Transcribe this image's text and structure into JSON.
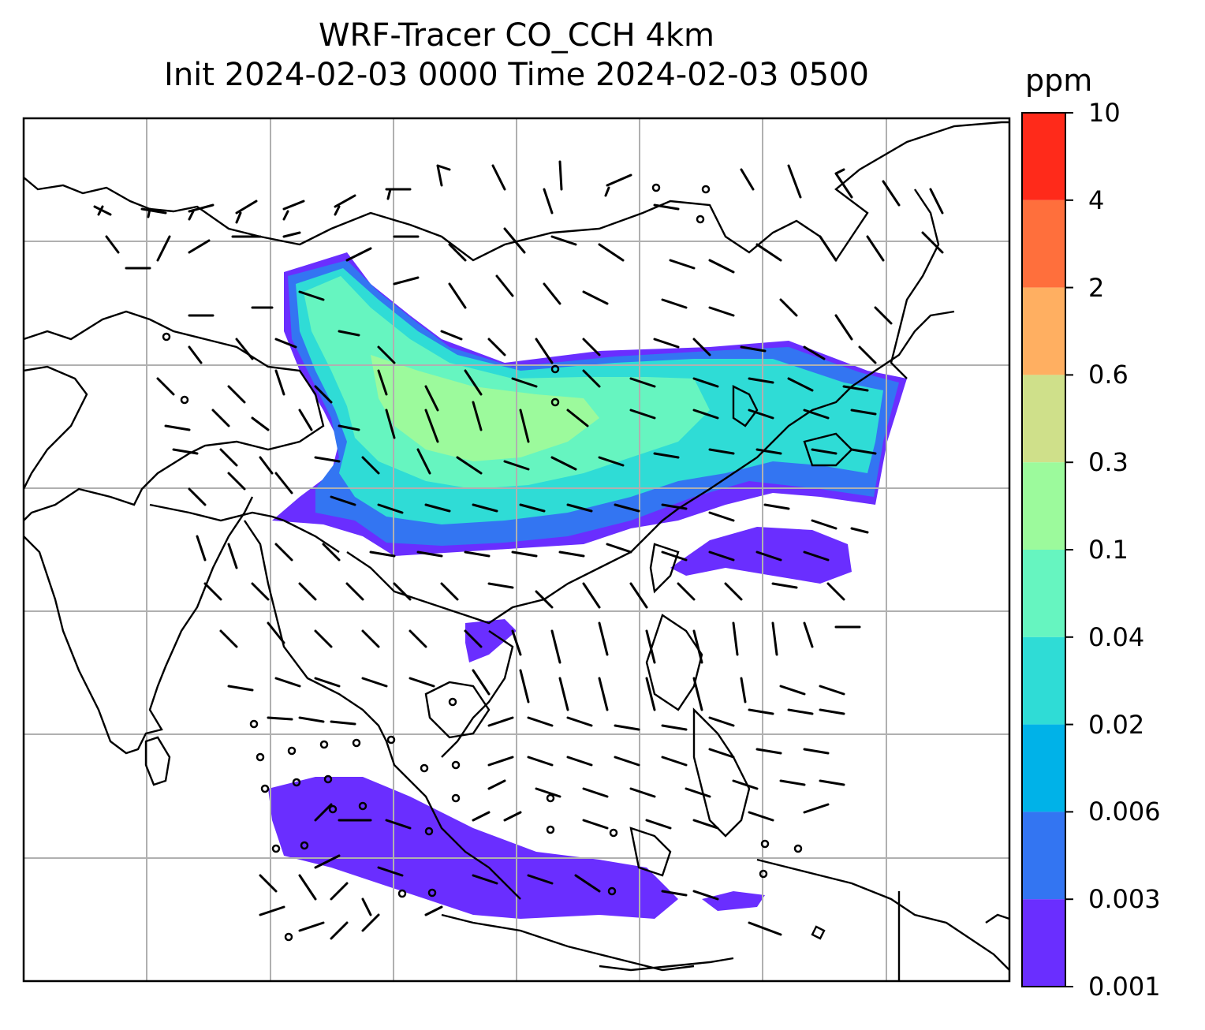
{
  "title": {
    "line1": "WRF-Tracer CO_CCH 4km",
    "line2": "Init 2024-02-03 0000 Time 2024-02-03 0500"
  },
  "colorbar": {
    "unit": "ppm",
    "ticks": [
      "10",
      "4",
      "2",
      "0.6",
      "0.3",
      "0.1",
      "0.04",
      "0.02",
      "0.006",
      "0.003",
      "0.001"
    ],
    "colors_top_to_bottom": [
      "#ff2a1a",
      "#ff6f3c",
      "#ffaf61",
      "#cfe08a",
      "#9cfa9c",
      "#66f5c0",
      "#2fdcd6",
      "#00b2e8",
      "#3375f2",
      "#6a2eff"
    ]
  },
  "map": {
    "gridline_color": "#b0b0b0",
    "coastline_color": "#000000",
    "plume_colors": {
      "lowest": "#6a2eff",
      "low": "#3375f2",
      "mid": "#2fdcd6",
      "mid_high": "#66f5c0",
      "high": "#9cfa9c"
    },
    "wind_barbs": "black wind barbs over domain",
    "calm_marker": "small open circle"
  }
}
